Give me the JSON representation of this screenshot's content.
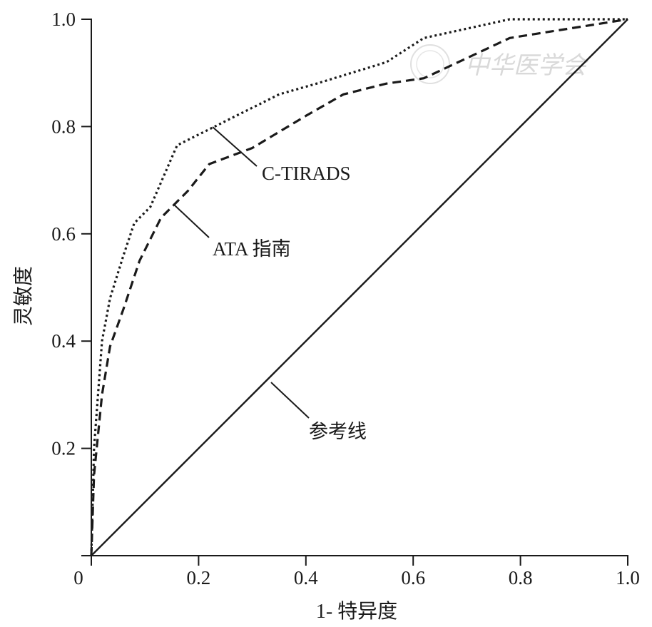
{
  "chart_data": {
    "type": "line",
    "xlabel": "1- 特异度",
    "ylabel": "灵敏度",
    "xlim": [
      0,
      1
    ],
    "ylim": [
      0,
      1
    ],
    "x_ticks": [
      "0",
      "0.2",
      "0.4",
      "0.6",
      "0.8",
      "1.0"
    ],
    "y_ticks": [
      "0.2",
      "0.4",
      "0.6",
      "0.8",
      "1.0"
    ],
    "grid": false,
    "series": [
      {
        "name": "C-TIRADS",
        "style": "dotted",
        "color": "#1a1a1a",
        "points": [
          [
            0,
            0
          ],
          [
            0.005,
            0.2
          ],
          [
            0.02,
            0.4
          ],
          [
            0.035,
            0.48
          ],
          [
            0.06,
            0.56
          ],
          [
            0.08,
            0.62
          ],
          [
            0.11,
            0.65
          ],
          [
            0.16,
            0.765
          ],
          [
            0.22,
            0.795
          ],
          [
            0.35,
            0.86
          ],
          [
            0.42,
            0.88
          ],
          [
            0.55,
            0.92
          ],
          [
            0.62,
            0.965
          ],
          [
            0.78,
            1.0
          ],
          [
            1.0,
            1.0
          ]
        ]
      },
      {
        "name": "ATA 指南",
        "style": "dashed",
        "color": "#1a1a1a",
        "points": [
          [
            0,
            0
          ],
          [
            0.005,
            0.15
          ],
          [
            0.02,
            0.3
          ],
          [
            0.035,
            0.39
          ],
          [
            0.06,
            0.46
          ],
          [
            0.09,
            0.55
          ],
          [
            0.13,
            0.63
          ],
          [
            0.18,
            0.68
          ],
          [
            0.22,
            0.73
          ],
          [
            0.3,
            0.76
          ],
          [
            0.4,
            0.82
          ],
          [
            0.47,
            0.86
          ],
          [
            0.55,
            0.88
          ],
          [
            0.62,
            0.89
          ],
          [
            0.78,
            0.965
          ],
          [
            1.0,
            1.0
          ]
        ]
      },
      {
        "name": "参考线",
        "style": "solid",
        "color": "#1a1a1a",
        "points": [
          [
            0,
            0
          ],
          [
            1,
            1
          ]
        ]
      }
    ],
    "annotations": [
      {
        "text": "C-TIRADS",
        "series": 0
      },
      {
        "text": "ATA 指南",
        "series": 1
      },
      {
        "text": "参考线",
        "series": 2
      }
    ]
  },
  "watermark": "中华医学会"
}
